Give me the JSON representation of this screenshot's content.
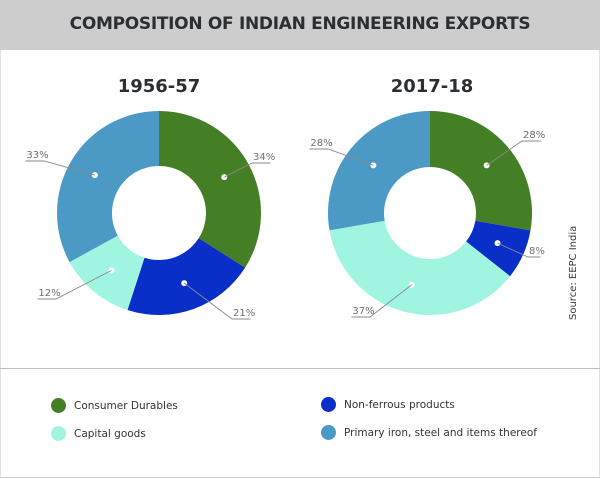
{
  "title": "COMPOSITION OF INDIAN ENGINEERING EXPORTS",
  "source": "Source: EEPC India",
  "colors": {
    "Consumer Durables": "#447f26",
    "Non-ferrous products": "#0a2fc8",
    "Capital goods": "#a0f5e1",
    "Primary iron, steel and items thereof": "#4b9ac6"
  },
  "legend": [
    {
      "label": "Consumer Durables",
      "color": "#447f26"
    },
    {
      "label": "Capital goods",
      "color": "#a0f5e1"
    },
    {
      "label": "Non-ferrous products",
      "color": "#0a2fc8"
    },
    {
      "label": "Primary iron, steel and items thereof",
      "color": "#4b9ac6"
    }
  ],
  "chart_data": [
    {
      "type": "pie",
      "variant": "donut",
      "title": "1956-57",
      "categories": [
        "Consumer Durables",
        "Non-ferrous products",
        "Capital goods",
        "Primary iron, steel and items thereof"
      ],
      "values": [
        34,
        21,
        12,
        33
      ],
      "labels": [
        "34%",
        "21%",
        "12%",
        "33%"
      ],
      "unit": "%",
      "start": "top",
      "direction": "clockwise"
    },
    {
      "type": "pie",
      "variant": "donut",
      "title": "2017-18",
      "categories": [
        "Consumer Durables",
        "Non-ferrous products",
        "Capital goods",
        "Primary iron, steel and items thereof"
      ],
      "values": [
        28,
        8,
        37,
        28
      ],
      "labels": [
        "28%",
        "8%",
        "37%",
        "28%"
      ],
      "unit": "%",
      "start": "top",
      "direction": "clockwise"
    }
  ]
}
